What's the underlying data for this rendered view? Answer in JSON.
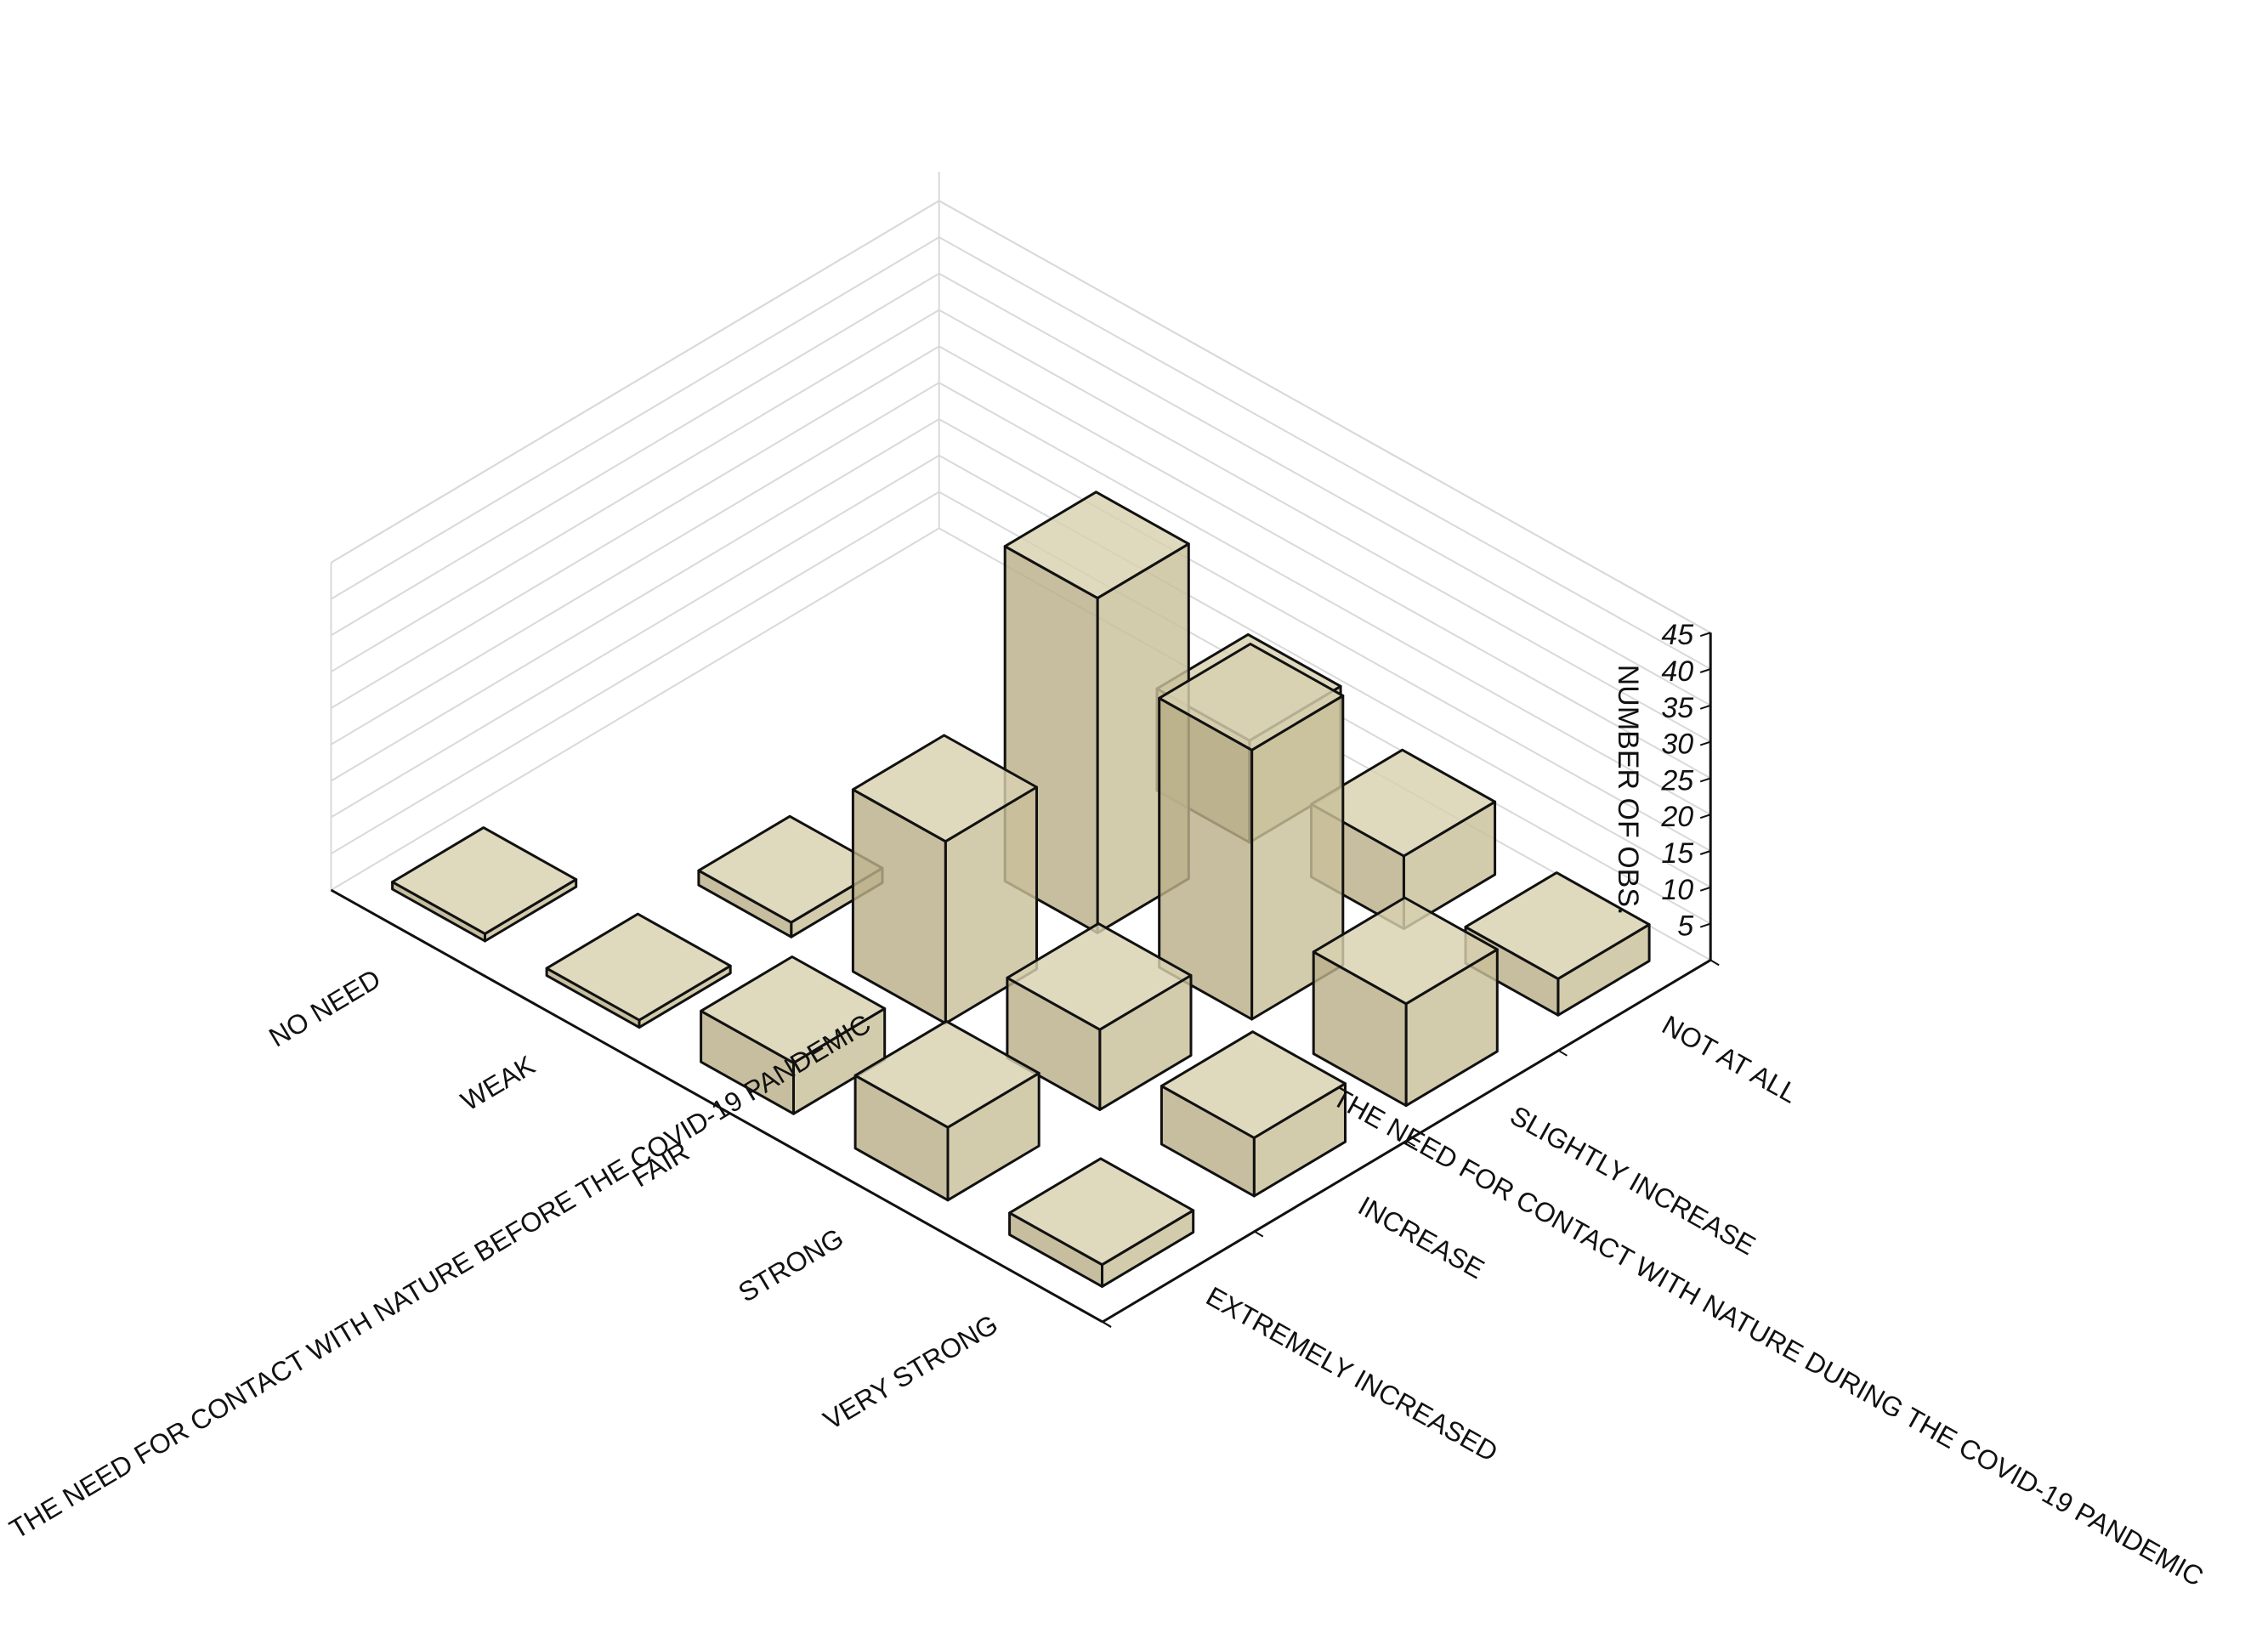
{
  "chart_data": {
    "type": "bar3d",
    "title": "",
    "zlabel": "NUMBER OF OBS.",
    "xlabel": "THE NEED FOR CONTACT WITH NATURE BEFORE THE COVID-19 PANDEMIC",
    "ylabel": "THE NEED FOR CONTACT WITH NATURE DURING THE COVID-19 PANDEMIC",
    "x_categories": [
      "NO NEED",
      "WEAK",
      "FAIR",
      "STRONG",
      "VERY STRONG"
    ],
    "y_categories": [
      "NOT AT ALL",
      "SLIGHTLY INCREASE",
      "INCREASE",
      "EXTREMELY INCREASED"
    ],
    "z_ticks": [
      5,
      10,
      15,
      20,
      25,
      30,
      35,
      40,
      45
    ],
    "zlim": [
      0,
      45
    ],
    "grid": true,
    "counts": [
      [
        0,
        0,
        0,
        1
      ],
      [
        0,
        0,
        2,
        1
      ],
      [
        14,
        46,
        25,
        7
      ],
      [
        10,
        37,
        11,
        10
      ],
      [
        5,
        14,
        8,
        3
      ]
    ],
    "colors": {
      "bar_face": "#c9c19a",
      "bar_top": "#d8d1b0",
      "bar_side": "#b9b08a",
      "bar_edge": "#111111",
      "grid": "#d9d9d9",
      "axis": "#111111"
    }
  }
}
